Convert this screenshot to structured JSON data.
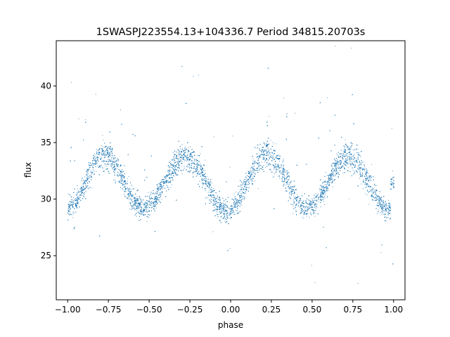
{
  "chart_data": {
    "type": "scatter",
    "title": "1SWASPJ223554.13+104336.7 Period 34815.20703s",
    "xlabel": "phase",
    "ylabel": "flux",
    "xlim": [
      -1.07,
      1.07
    ],
    "ylim": [
      21.1,
      44.0
    ],
    "x_ticks": [
      -1.0,
      -0.75,
      -0.5,
      -0.25,
      0.0,
      0.25,
      0.5,
      0.75,
      1.0
    ],
    "x_tick_labels": [
      "−1.00",
      "−0.75",
      "−0.50",
      "−0.25",
      "0.00",
      "0.25",
      "0.50",
      "0.75",
      "1.00"
    ],
    "y_ticks": [
      25,
      30,
      35,
      40
    ],
    "y_tick_labels": [
      "25",
      "30",
      "35",
      "40"
    ],
    "grid": false,
    "legend": "none",
    "point_color": "#1f77b4",
    "light_curve": {
      "description_points": [
        {
          "phase": -1.0,
          "flux": 29.3
        },
        {
          "phase": -0.78,
          "flux": 34.3
        },
        {
          "phase": -0.53,
          "flux": 29.3
        },
        {
          "phase": -0.28,
          "flux": 34.1
        },
        {
          "phase": -0.02,
          "flux": 29.0
        },
        {
          "phase": 0.22,
          "flux": 34.3
        },
        {
          "phase": 0.47,
          "flux": 29.3
        },
        {
          "phase": 0.72,
          "flux": 34.1
        },
        {
          "phase": 0.98,
          "flux": 29.0
        }
      ],
      "mean_flux": 31.6,
      "amplitude": 2.6,
      "cycles_per_unit_phase": 2,
      "scatter_sigma": 0.45,
      "n_points": 9000
    }
  }
}
